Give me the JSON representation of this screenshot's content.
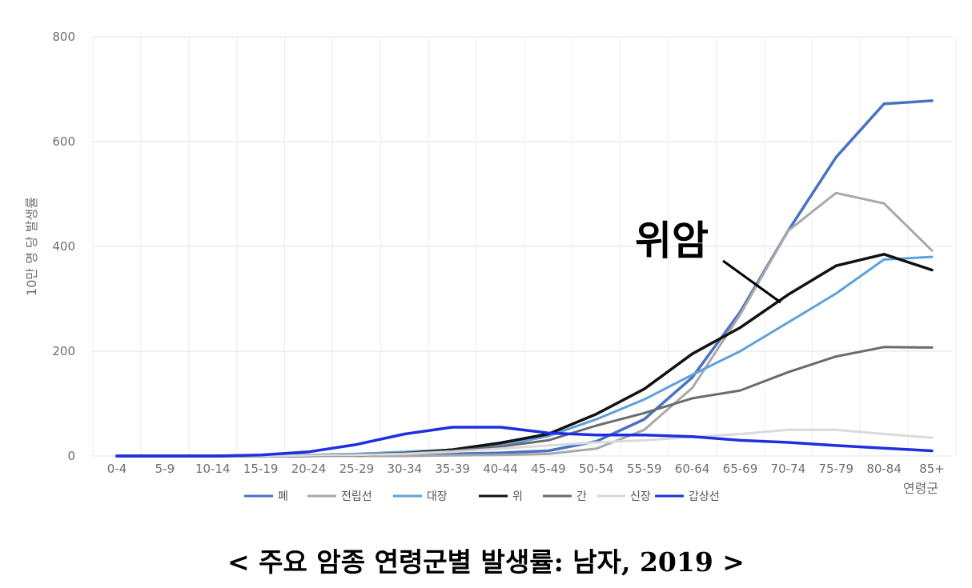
{
  "caption": "< 주요 암종 연령군별 발생률: 남자, 2019 >",
  "chart_data": {
    "type": "line",
    "ylabel": "10만 명 당 발생률",
    "xlabel": "연령군",
    "ylim": [
      0,
      800
    ],
    "yticks": [
      0,
      200,
      400,
      600,
      800
    ],
    "grid": true,
    "legend_position": "bottom",
    "categories": [
      "0-4",
      "5-9",
      "10-14",
      "15-19",
      "20-24",
      "25-29",
      "30-34",
      "35-39",
      "40-44",
      "45-49",
      "50-54",
      "55-59",
      "60-64",
      "65-69",
      "70-74",
      "75-79",
      "80-84",
      "85+"
    ],
    "series": [
      {
        "name": "폐",
        "color": "#4a72c4",
        "width": 3.5,
        "values": [
          0,
          0,
          0,
          0,
          0,
          1,
          2,
          4,
          6,
          10,
          28,
          70,
          150,
          275,
          430,
          570,
          672,
          678
        ]
      },
      {
        "name": "전립선",
        "color": "#a9a9a9",
        "width": 3,
        "values": [
          0,
          0,
          0,
          0,
          0,
          0,
          0,
          1,
          2,
          4,
          14,
          50,
          130,
          270,
          430,
          502,
          482,
          392
        ]
      },
      {
        "name": "대장",
        "color": "#5ea1d9",
        "width": 3,
        "values": [
          0,
          0,
          0,
          0,
          2,
          4,
          8,
          12,
          20,
          38,
          70,
          108,
          155,
          200,
          255,
          310,
          375,
          380
        ]
      },
      {
        "name": "위",
        "color": "#111111",
        "width": 3.5,
        "values": [
          0,
          0,
          0,
          0,
          1,
          2,
          5,
          12,
          25,
          42,
          80,
          128,
          195,
          245,
          308,
          363,
          385,
          355
        ]
      },
      {
        "name": "간",
        "color": "#6b6b6b",
        "width": 3,
        "values": [
          0,
          0,
          0,
          0,
          1,
          2,
          5,
          10,
          18,
          30,
          58,
          82,
          110,
          125,
          160,
          190,
          208,
          207
        ]
      },
      {
        "name": "신장",
        "color": "#dadada",
        "width": 3,
        "values": [
          0,
          0,
          0,
          0,
          1,
          2,
          4,
          8,
          14,
          20,
          26,
          30,
          36,
          42,
          50,
          50,
          42,
          35
        ]
      },
      {
        "name": "갑상선",
        "color": "#1f2fe0",
        "width": 3.5,
        "values": [
          0,
          0,
          0,
          2,
          8,
          22,
          42,
          55,
          55,
          44,
          40,
          40,
          37,
          30,
          26,
          20,
          15,
          10
        ]
      }
    ],
    "annotations": [
      {
        "text": "위암",
        "points_to": "위",
        "at": "70-74"
      }
    ]
  }
}
